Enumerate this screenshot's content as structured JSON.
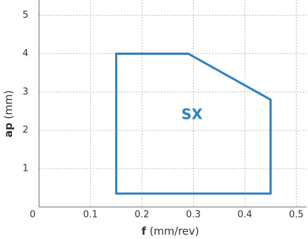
{
  "chart_data": {
    "type": "polygon",
    "x_label": {
      "symbol": "f",
      "unit": "(mm/rev)"
    },
    "y_label": {
      "symbol": "ap",
      "unit": "(mm)"
    },
    "series": [
      {
        "name": "SX",
        "color": "#2a7fc1",
        "x": [
          0.15,
          0.15,
          0.29,
          0.45,
          0.45
        ],
        "y": [
          0.35,
          4,
          4,
          2.8,
          0.35
        ]
      }
    ],
    "xlim": [
      0,
      0.52
    ],
    "xticks": [
      0,
      0.1,
      0.2,
      0.3,
      0.4,
      0.5
    ],
    "ylim": [
      0,
      5.4
    ],
    "yticks": [
      1,
      2,
      3,
      4,
      5
    ],
    "grid": true
  }
}
